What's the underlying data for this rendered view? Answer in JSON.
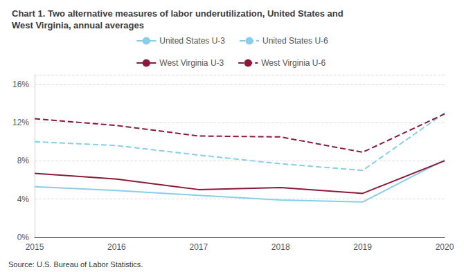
{
  "chart_data": {
    "type": "line",
    "title": "Chart 1. Two alternative measures of labor underutilization, United States and\nWest Virginia, annual averages",
    "annotations": [
      "Source: U.S. Bureau of Labor Statistics."
    ],
    "x": [
      2015,
      2016,
      2017,
      2018,
      2019,
      2020
    ],
    "series": [
      {
        "name": "United States U-3",
        "color": "#87CEEB",
        "line_style": "solid",
        "values": [
          5.3,
          4.9,
          4.4,
          3.9,
          3.7,
          8.1
        ]
      },
      {
        "name": "United States U-6",
        "color": "#87CEEB",
        "line_style": "dashed",
        "values": [
          10.0,
          9.6,
          8.6,
          7.7,
          7.0,
          13.0
        ]
      },
      {
        "name": "West Virginia U-3",
        "color": "#8B1A3A",
        "line_style": "solid",
        "values": [
          6.7,
          6.1,
          5.0,
          5.2,
          4.6,
          8.0
        ]
      },
      {
        "name": "West Virginia U-6",
        "color": "#8B1A3A",
        "line_style": "dashed",
        "values": [
          12.4,
          11.7,
          10.6,
          10.5,
          8.9,
          12.9
        ]
      }
    ],
    "xlim": [
      2015,
      2020
    ],
    "xticks": [
      2015,
      2016,
      2017,
      2018,
      2019,
      2020
    ],
    "ylim": [
      0,
      17
    ],
    "yticks": [
      {
        "value": 0,
        "label": "0%"
      },
      {
        "value": 4,
        "label": "4%"
      },
      {
        "value": 8,
        "label": "8%"
      },
      {
        "value": 12,
        "label": "12%"
      },
      {
        "value": 16,
        "label": "16%"
      }
    ],
    "grid": true,
    "legend": "top"
  }
}
